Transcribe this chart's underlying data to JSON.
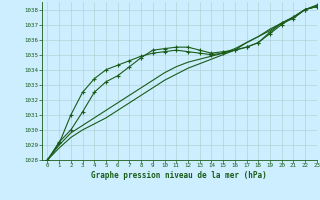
{
  "title": "Graphe pression niveau de la mer (hPa)",
  "bg_color": "#cceeff",
  "grid_color": "#aacccc",
  "line_color": "#1a5c1a",
  "marker_color": "#1a5c1a",
  "xlim": [
    -0.5,
    23
  ],
  "ylim": [
    1028,
    1038.5
  ],
  "xticks": [
    0,
    1,
    2,
    3,
    4,
    5,
    6,
    7,
    8,
    9,
    10,
    11,
    12,
    13,
    14,
    15,
    16,
    17,
    18,
    19,
    20,
    21,
    22,
    23
  ],
  "yticks": [
    1028,
    1029,
    1030,
    1031,
    1032,
    1033,
    1034,
    1035,
    1036,
    1037,
    1038
  ],
  "series1_x": [
    0,
    1,
    2,
    3,
    4,
    5,
    6,
    7,
    8,
    9,
    10,
    11,
    12,
    13,
    14,
    15,
    16,
    17,
    18,
    19,
    20,
    21,
    22,
    23
  ],
  "series1_y": [
    1028.0,
    1029.2,
    1030.0,
    1031.2,
    1032.5,
    1033.2,
    1033.6,
    1034.2,
    1034.8,
    1035.3,
    1035.4,
    1035.5,
    1035.5,
    1035.3,
    1035.1,
    1035.2,
    1035.3,
    1035.5,
    1035.8,
    1036.5,
    1037.1,
    1037.4,
    1038.0,
    1038.3
  ],
  "series2_x": [
    0,
    1,
    2,
    3,
    4,
    5,
    6,
    7,
    8,
    9,
    10,
    11,
    12,
    13,
    14,
    15,
    16,
    17,
    18,
    19,
    20,
    21,
    22,
    23
  ],
  "series2_y": [
    1028.0,
    1029.1,
    1031.0,
    1032.5,
    1033.4,
    1034.0,
    1034.3,
    1034.6,
    1034.9,
    1035.1,
    1035.2,
    1035.3,
    1035.2,
    1035.1,
    1035.0,
    1035.1,
    1035.3,
    1035.5,
    1035.8,
    1036.4,
    1037.0,
    1037.5,
    1038.0,
    1038.2
  ],
  "series3_x": [
    0,
    1,
    2,
    3,
    4,
    5,
    6,
    7,
    8,
    9,
    10,
    11,
    12,
    13,
    14,
    15,
    16,
    17,
    18,
    19,
    20,
    21,
    22,
    23
  ],
  "series3_y": [
    1028.0,
    1029.0,
    1029.8,
    1030.3,
    1030.8,
    1031.3,
    1031.8,
    1032.3,
    1032.8,
    1033.3,
    1033.8,
    1034.2,
    1034.5,
    1034.7,
    1034.9,
    1035.1,
    1035.4,
    1035.8,
    1036.2,
    1036.6,
    1037.1,
    1037.5,
    1038.0,
    1038.2
  ],
  "series4_x": [
    0,
    1,
    2,
    3,
    4,
    5,
    6,
    7,
    8,
    9,
    10,
    11,
    12,
    13,
    14,
    15,
    16,
    17,
    18,
    19,
    20,
    21,
    22,
    23
  ],
  "series4_y": [
    1028.0,
    1028.8,
    1029.5,
    1030.0,
    1030.4,
    1030.8,
    1031.3,
    1031.8,
    1032.3,
    1032.8,
    1033.3,
    1033.7,
    1034.1,
    1034.4,
    1034.7,
    1035.0,
    1035.3,
    1035.8,
    1036.2,
    1036.7,
    1037.1,
    1037.5,
    1038.0,
    1038.2
  ]
}
